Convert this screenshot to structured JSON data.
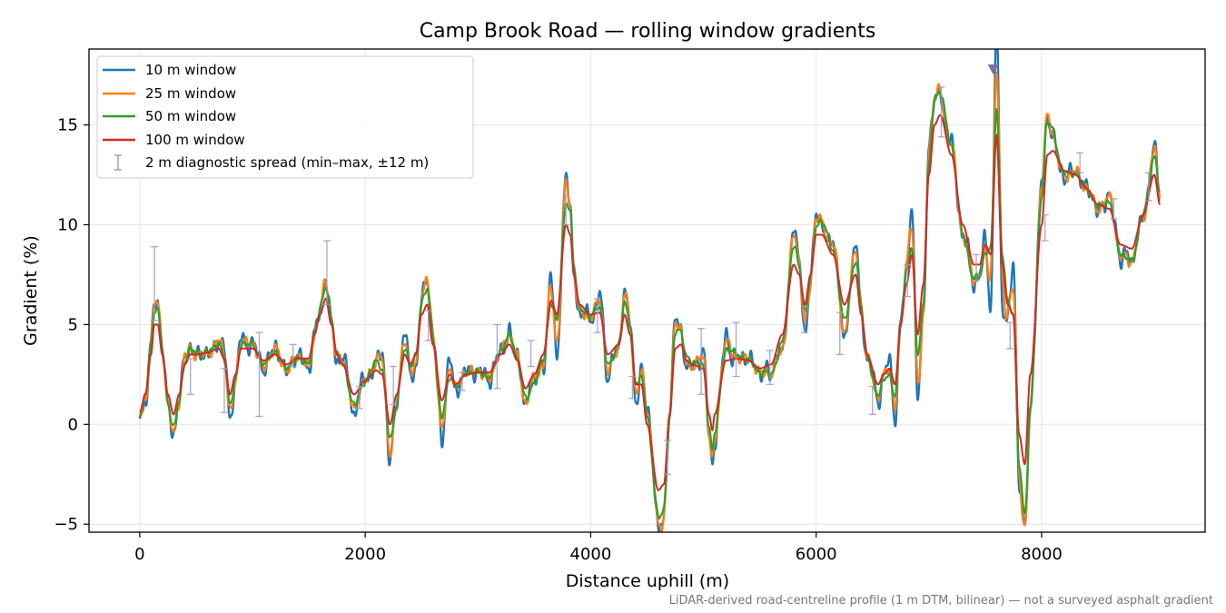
{
  "chart_data": {
    "type": "line",
    "title": "Camp Brook Road — rolling window gradients",
    "xlabel": "Distance uphill (m)",
    "ylabel": "Gradient (%)",
    "xlim": [
      -450,
      9450
    ],
    "ylim": [
      -5.4,
      18.8
    ],
    "xticks": [
      0,
      2000,
      4000,
      6000,
      8000
    ],
    "yticks": [
      -5,
      0,
      5,
      10,
      15
    ],
    "ytick_labels": [
      "−5",
      "0",
      "5",
      "10",
      "15"
    ],
    "grid": true,
    "legend_position": "top-left",
    "footnote": "LiDAR-derived road-centreline profile (1 m DTM, bilinear) — not a surveyed asphalt gradient",
    "profile_100m": [
      [
        0,
        0.6
      ],
      [
        50,
        1.5
      ],
      [
        100,
        3.5
      ],
      [
        130,
        5.0
      ],
      [
        160,
        5.0
      ],
      [
        200,
        3.5
      ],
      [
        250,
        1.5
      ],
      [
        300,
        0.5
      ],
      [
        350,
        1.5
      ],
      [
        400,
        3.0
      ],
      [
        450,
        3.5
      ],
      [
        500,
        3.5
      ],
      [
        600,
        3.6
      ],
      [
        700,
        3.8
      ],
      [
        750,
        3.3
      ],
      [
        800,
        1.5
      ],
      [
        850,
        2.5
      ],
      [
        900,
        3.8
      ],
      [
        1000,
        3.8
      ],
      [
        1100,
        3.2
      ],
      [
        1200,
        3.5
      ],
      [
        1300,
        3.0
      ],
      [
        1400,
        3.3
      ],
      [
        1500,
        3.3
      ],
      [
        1550,
        4.5
      ],
      [
        1600,
        5.5
      ],
      [
        1650,
        6.3
      ],
      [
        1700,
        5.0
      ],
      [
        1750,
        3.5
      ],
      [
        1800,
        3.0
      ],
      [
        1900,
        1.5
      ],
      [
        2000,
        2.2
      ],
      [
        2100,
        2.7
      ],
      [
        2150,
        2.5
      ],
      [
        2220,
        0.0
      ],
      [
        2280,
        1.5
      ],
      [
        2350,
        3.5
      ],
      [
        2400,
        3.0
      ],
      [
        2450,
        3.5
      ],
      [
        2500,
        5.5
      ],
      [
        2550,
        6.0
      ],
      [
        2600,
        4.0
      ],
      [
        2680,
        1.2
      ],
      [
        2750,
        2.5
      ],
      [
        2800,
        2.0
      ],
      [
        2900,
        2.5
      ],
      [
        3000,
        2.6
      ],
      [
        3100,
        2.6
      ],
      [
        3200,
        3.5
      ],
      [
        3280,
        4.0
      ],
      [
        3350,
        3.2
      ],
      [
        3420,
        1.8
      ],
      [
        3500,
        2.5
      ],
      [
        3580,
        3.5
      ],
      [
        3650,
        6.2
      ],
      [
        3700,
        5.5
      ],
      [
        3780,
        10.0
      ],
      [
        3820,
        9.5
      ],
      [
        3850,
        7.5
      ],
      [
        3900,
        6.0
      ],
      [
        4000,
        5.5
      ],
      [
        4080,
        5.6
      ],
      [
        4150,
        3.5
      ],
      [
        4250,
        4.0
      ],
      [
        4300,
        5.5
      ],
      [
        4350,
        4.5
      ],
      [
        4400,
        2.0
      ],
      [
        4450,
        2.0
      ],
      [
        4500,
        0.0
      ],
      [
        4600,
        -3.3
      ],
      [
        4650,
        -3.0
      ],
      [
        4700,
        0.5
      ],
      [
        4750,
        3.8
      ],
      [
        4800,
        4.0
      ],
      [
        4850,
        3.2
      ],
      [
        4900,
        3.0
      ],
      [
        5000,
        2.8
      ],
      [
        5050,
        0.5
      ],
      [
        5080,
        -0.3
      ],
      [
        5100,
        0.5
      ],
      [
        5200,
        3.2
      ],
      [
        5300,
        3.3
      ],
      [
        5400,
        3.2
      ],
      [
        5500,
        2.8
      ],
      [
        5600,
        3.0
      ],
      [
        5700,
        4.5
      ],
      [
        5800,
        8.0
      ],
      [
        5850,
        7.5
      ],
      [
        5900,
        6.0
      ],
      [
        5950,
        7.5
      ],
      [
        6000,
        9.5
      ],
      [
        6050,
        9.5
      ],
      [
        6150,
        8.5
      ],
      [
        6250,
        6.0
      ],
      [
        6350,
        7.5
      ],
      [
        6400,
        5.5
      ],
      [
        6450,
        3.5
      ],
      [
        6550,
        2.0
      ],
      [
        6600,
        2.5
      ],
      [
        6650,
        2.8
      ],
      [
        6700,
        2.0
      ],
      [
        6750,
        5.0
      ],
      [
        6800,
        7.0
      ],
      [
        6850,
        8.5
      ],
      [
        6900,
        4.5
      ],
      [
        6950,
        7.0
      ],
      [
        7000,
        12.5
      ],
      [
        7050,
        15.0
      ],
      [
        7100,
        15.5
      ],
      [
        7200,
        13.5
      ],
      [
        7300,
        10.0
      ],
      [
        7400,
        8.0
      ],
      [
        7450,
        8.0
      ],
      [
        7500,
        9.0
      ],
      [
        7550,
        8.5
      ],
      [
        7600,
        14.5
      ],
      [
        7650,
        8.0
      ],
      [
        7700,
        6.0
      ],
      [
        7750,
        5.5
      ],
      [
        7800,
        -0.5
      ],
      [
        7850,
        -2.0
      ],
      [
        7900,
        2.5
      ],
      [
        8000,
        10.0
      ],
      [
        8050,
        13.5
      ],
      [
        8100,
        13.7
      ],
      [
        8200,
        12.7
      ],
      [
        8300,
        12.5
      ],
      [
        8400,
        11.8
      ],
      [
        8500,
        11.0
      ],
      [
        8600,
        10.8
      ],
      [
        8700,
        9.0
      ],
      [
        8800,
        8.8
      ],
      [
        8900,
        10.5
      ],
      [
        9000,
        12.5
      ],
      [
        9050,
        11.0
      ]
    ],
    "series": [
      {
        "name": "10 m window",
        "color": "#1f77b4",
        "width": 2.4,
        "amp": 1.0,
        "sigma": 8,
        "noise": 0.45,
        "seed": 11
      },
      {
        "name": "25 m window",
        "color": "#ff7f0e",
        "width": 2.2,
        "amp": 0.75,
        "sigma": 12,
        "noise": 0.32,
        "seed": 23
      },
      {
        "name": "50 m window",
        "color": "#2ca02c",
        "width": 2.1,
        "amp": 0.5,
        "sigma": 20,
        "noise": 0.18,
        "seed": 37
      },
      {
        "name": "100 m window",
        "color": "#d62728",
        "width": 2.0,
        "amp": 0,
        "sigma": 0,
        "noise": 0,
        "seed": 0
      }
    ],
    "errorbar_series": {
      "name": "2 m diagnostic spread (min–max, ±12 m)",
      "color": "#9b97c6",
      "points": [
        {
          "x": 130,
          "min": 5.2,
          "max": 8.9
        },
        {
          "x": 450,
          "min": 1.5,
          "max": 3.3
        },
        {
          "x": 750,
          "min": 0.6,
          "max": 2.8
        },
        {
          "x": 1060,
          "min": 0.4,
          "max": 4.6
        },
        {
          "x": 1360,
          "min": 2.9,
          "max": 4.0
        },
        {
          "x": 1660,
          "min": 6.0,
          "max": 9.2
        },
        {
          "x": 1950,
          "min": 0.8,
          "max": 1.9
        },
        {
          "x": 2250,
          "min": 1.0,
          "max": 2.9
        },
        {
          "x": 2560,
          "min": 4.2,
          "max": 5.7
        },
        {
          "x": 2860,
          "min": 1.7,
          "max": 2.6
        },
        {
          "x": 3170,
          "min": 1.8,
          "max": 5.0
        },
        {
          "x": 3470,
          "min": 2.9,
          "max": 4.2
        },
        {
          "x": 3780,
          "min": 10.0,
          "max": 11.5
        },
        {
          "x": 4060,
          "min": 4.6,
          "max": 6.3
        },
        {
          "x": 4370,
          "min": 1.3,
          "max": 2.4
        },
        {
          "x": 4680,
          "min": -2.5,
          "max": -0.8
        },
        {
          "x": 4980,
          "min": 1.5,
          "max": 4.8
        },
        {
          "x": 5290,
          "min": 2.4,
          "max": 5.1
        },
        {
          "x": 5590,
          "min": 2.0,
          "max": 3.7
        },
        {
          "x": 5900,
          "min": 4.6,
          "max": 5.9
        },
        {
          "x": 6210,
          "min": 3.5,
          "max": 5.6
        },
        {
          "x": 6500,
          "min": 0.5,
          "max": 1.9
        },
        {
          "x": 6810,
          "min": 6.4,
          "max": 8.0
        },
        {
          "x": 7110,
          "min": 14.4,
          "max": 16.9
        },
        {
          "x": 7420,
          "min": 7.2,
          "max": 8.5
        },
        {
          "x": 7720,
          "min": 3.8,
          "max": 5.1
        },
        {
          "x": 8030,
          "min": 9.2,
          "max": 10.5
        },
        {
          "x": 8340,
          "min": 12.6,
          "max": 13.6
        },
        {
          "x": 8640,
          "min": 10.3,
          "max": 11.3
        },
        {
          "x": 8950,
          "min": 11.2,
          "max": 12.6
        }
      ]
    },
    "peak_marker": {
      "x": 7570,
      "y": 17.8,
      "color": "#7c6fa5",
      "shape": "triangle-down"
    }
  }
}
